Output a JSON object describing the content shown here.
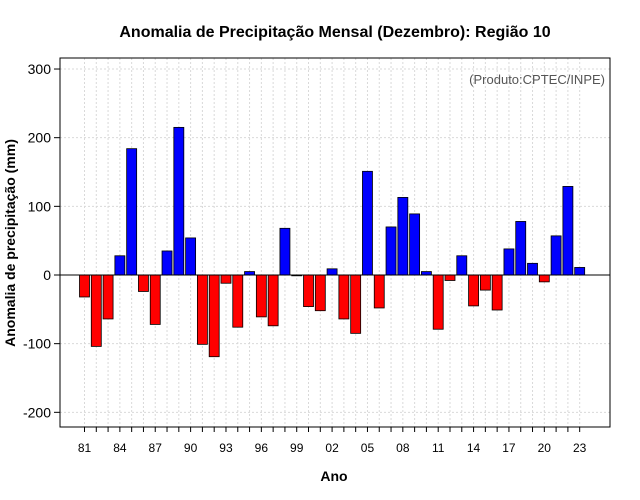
{
  "chart_data": {
    "type": "bar",
    "title": "Anomalia de Precipitação Mensal (Dezembro): Região 10",
    "xlabel": "Ano",
    "ylabel": "Anomalia de precipitação (mm)",
    "source_note": "(Produto:CPTEC/INPE)",
    "ylim": [
      -220,
      315
    ],
    "yticks": [
      -200,
      -100,
      0,
      100,
      200,
      300
    ],
    "grid": true,
    "positive_color": "#0000ff",
    "negative_color": "#ff0000",
    "categories": [
      "1981",
      "1982",
      "1983",
      "1984",
      "1985",
      "1986",
      "1987",
      "1988",
      "1989",
      "1990",
      "1991",
      "1992",
      "1993",
      "1994",
      "1995",
      "1996",
      "1997",
      "1998",
      "1999",
      "2000",
      "2001",
      "2002",
      "2003",
      "2004",
      "2005",
      "2006",
      "2007",
      "2008",
      "2009",
      "2010",
      "2011",
      "2012",
      "2013",
      "2014",
      "2015",
      "2016",
      "2017",
      "2018",
      "2019",
      "2020",
      "2021",
      "2022",
      "2023"
    ],
    "xtick_labels": [
      "81",
      "84",
      "87",
      "90",
      "93",
      "96",
      "99",
      "02",
      "05",
      "08",
      "11",
      "14",
      "17",
      "20",
      "23"
    ],
    "xtick_index": [
      0,
      3,
      6,
      9,
      12,
      15,
      18,
      21,
      24,
      27,
      30,
      33,
      36,
      39,
      42
    ],
    "values": [
      -32,
      -104,
      -64,
      28,
      184,
      -24,
      -72,
      35,
      215,
      54,
      -101,
      -119,
      -12,
      -76,
      5,
      -61,
      -74,
      68,
      -1,
      -46,
      -52,
      9,
      -64,
      -85,
      151,
      -48,
      70,
      113,
      89,
      5,
      -79,
      -8,
      28,
      -45,
      -22,
      -51,
      38,
      78,
      17,
      -10,
      57,
      129,
      11
    ]
  }
}
